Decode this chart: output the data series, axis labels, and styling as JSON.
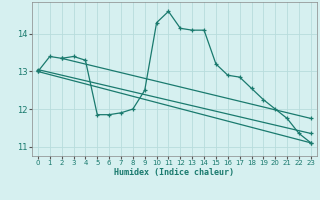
{
  "xlabel": "Humidex (Indice chaleur)",
  "bg_color": "#d6f0f0",
  "grid_color": "#b8dcdc",
  "line_color": "#1a7a6e",
  "xlim": [
    -0.5,
    23.5
  ],
  "ylim": [
    10.75,
    14.85
  ],
  "yticks": [
    11,
    12,
    13,
    14
  ],
  "xticks": [
    0,
    1,
    2,
    3,
    4,
    5,
    6,
    7,
    8,
    9,
    10,
    11,
    12,
    13,
    14,
    15,
    16,
    17,
    18,
    19,
    20,
    21,
    22,
    23
  ],
  "series": [
    [
      0,
      13.0
    ],
    [
      1,
      13.4
    ],
    [
      2,
      13.35
    ],
    [
      3,
      13.4
    ],
    [
      4,
      13.3
    ],
    [
      5,
      11.85
    ],
    [
      6,
      11.85
    ],
    [
      7,
      11.9
    ],
    [
      8,
      12.0
    ],
    [
      9,
      12.5
    ],
    [
      10,
      14.3
    ],
    [
      11,
      14.6
    ],
    [
      12,
      14.15
    ],
    [
      13,
      14.1
    ],
    [
      14,
      14.1
    ],
    [
      15,
      13.2
    ],
    [
      16,
      12.9
    ],
    [
      17,
      12.85
    ],
    [
      18,
      12.55
    ],
    [
      19,
      12.25
    ],
    [
      20,
      12.0
    ],
    [
      21,
      11.75
    ],
    [
      22,
      11.35
    ],
    [
      23,
      11.1
    ]
  ],
  "linear1": [
    [
      0,
      13.0
    ],
    [
      23,
      11.1
    ]
  ],
  "linear2": [
    [
      0,
      13.05
    ],
    [
      23,
      11.35
    ]
  ],
  "linear3": [
    [
      2,
      13.35
    ],
    [
      23,
      11.75
    ]
  ]
}
